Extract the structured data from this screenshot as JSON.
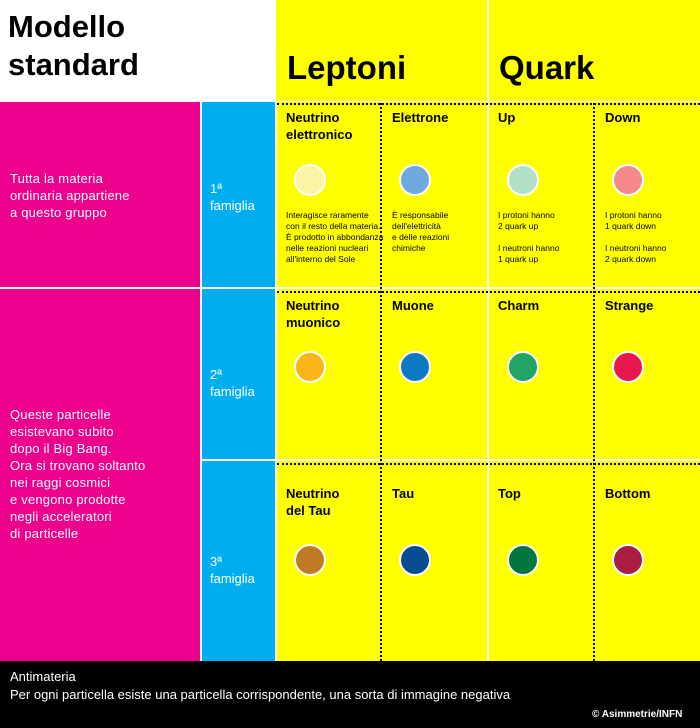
{
  "title": "Modello\nstandard",
  "headings": {
    "leptons": "Leptoni",
    "quarks": "Quark"
  },
  "groups": {
    "ordinary": "Tutta  la  materia\nordinaria  appartiene\na  questo   gruppo",
    "others": "Queste   particelle\nesistevano    subito\ndopo  il  Big  Bang.\nOra  si  trovano   soltanto\nnei  raggi   cosmici\ne  vengono   prodotte\nnegli  acceleratori\ndi  particelle"
  },
  "families": [
    {
      "label": "1ª\nfamiglia"
    },
    {
      "label": "2ª\nfamiglia"
    },
    {
      "label": "3ª\nfamiglia"
    }
  ],
  "particles": {
    "f1": [
      {
        "name": "Neutrino\nelettronico",
        "color": "#fdf5a6",
        "desc": "Interagisce raramente\ncon il resto della materia.\nÈ prodotto in abbondanza\nnelle reazioni nucleari\nall'interno del Sole"
      },
      {
        "name": "Elettrone",
        "color": "#6fa8dc",
        "desc": "È responsabile\ndell'elettricità\ne delle reazioni\nchimiche"
      },
      {
        "name": "Up",
        "color": "#b0e0c8",
        "desc": "I protoni hanno\n2 quark up\n\nI neutroni hanno\n1 quark up"
      },
      {
        "name": "Down",
        "color": "#f4888a",
        "desc": "I protoni hanno\n1 quark down\n\nI neutroni hanno\n2 quark down"
      }
    ],
    "f2": [
      {
        "name": "Neutrino\nmuonico",
        "color": "#fbb41a"
      },
      {
        "name": "Muone",
        "color": "#0b79c4"
      },
      {
        "name": "Charm",
        "color": "#21a466"
      },
      {
        "name": "Strange",
        "color": "#e8174d"
      }
    ],
    "f3": [
      {
        "name": "Neutrino\ndel  Tau",
        "color": "#c07a26"
      },
      {
        "name": "Tau",
        "color": "#064d91"
      },
      {
        "name": "Top",
        "color": "#00773d"
      },
      {
        "name": "Bottom",
        "color": "#a81e44"
      }
    ]
  },
  "footer": {
    "title": "Antimateria",
    "text": "Per ogni particella esiste una particella corrispondente, una sorta di immagine negativa",
    "credit": "© Asimmetrie/INFN"
  },
  "colors": {
    "magenta": "#ec008c",
    "cyan": "#00aeef",
    "yellow": "#ffff00",
    "black": "#000000"
  }
}
